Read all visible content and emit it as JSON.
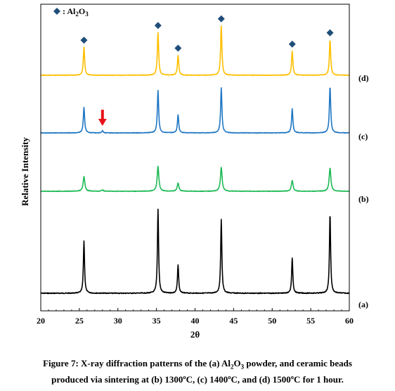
{
  "chart_data": {
    "type": "line",
    "xlabel": "2θ",
    "ylabel": "Relative Intensity",
    "xlim": [
      20,
      60
    ],
    "x_ticks": [
      "20",
      "25",
      "30",
      "35",
      "40",
      "45",
      "50",
      "55",
      "60"
    ],
    "grid": false,
    "legend": {
      "marker": "diamond",
      "color": "#1f4e79",
      "prefix": ": ",
      "label_main": "Al",
      "sub1": "2",
      "mid": "O",
      "sub2": "3"
    },
    "peak_positions": [
      25.6,
      35.2,
      37.8,
      43.4,
      52.6,
      57.5
    ],
    "series": [
      {
        "label": "(a)",
        "color": "#000000",
        "peaks": [
          [
            25.6,
            0.62
          ],
          [
            35.2,
            1.0
          ],
          [
            37.8,
            0.34
          ],
          [
            43.4,
            0.88
          ],
          [
            52.6,
            0.42
          ],
          [
            57.5,
            0.95
          ]
        ]
      },
      {
        "label": "(b)",
        "color": "#1db954",
        "peaks": [
          [
            25.6,
            0.33
          ],
          [
            28.0,
            0.03
          ],
          [
            35.2,
            0.55
          ],
          [
            37.8,
            0.18
          ],
          [
            43.4,
            0.53
          ],
          [
            52.6,
            0.24
          ],
          [
            57.5,
            0.52
          ]
        ]
      },
      {
        "label": "(c)",
        "color": "#1f77c4",
        "peaks": [
          [
            25.6,
            0.47
          ],
          [
            28.0,
            0.04
          ],
          [
            35.2,
            0.77
          ],
          [
            37.8,
            0.33
          ],
          [
            43.4,
            0.82
          ],
          [
            52.6,
            0.44
          ],
          [
            57.5,
            0.85
          ]
        ]
      },
      {
        "label": "(d)",
        "color": "#ffbf00",
        "peaks": [
          [
            25.6,
            0.42
          ],
          [
            35.2,
            0.64
          ],
          [
            37.8,
            0.3
          ],
          [
            43.4,
            0.74
          ],
          [
            52.6,
            0.36
          ],
          [
            57.5,
            0.53
          ]
        ]
      }
    ],
    "annotations": [
      {
        "type": "arrow",
        "color": "#e8141b",
        "x": 28.0,
        "series": "(c)"
      }
    ]
  },
  "caption": {
    "line1_a": "Figure 7: X-ray diffraction patterns of the (a) Al",
    "line1_sub1": "2",
    "line1_b": "O",
    "line1_sub2": "3",
    "line1_c": " powder, and ceramic beads",
    "line2": "produced via sintering at (b) 1300ºC, (c) 1400ºC, and (d) 1500ºC for 1 hour."
  }
}
